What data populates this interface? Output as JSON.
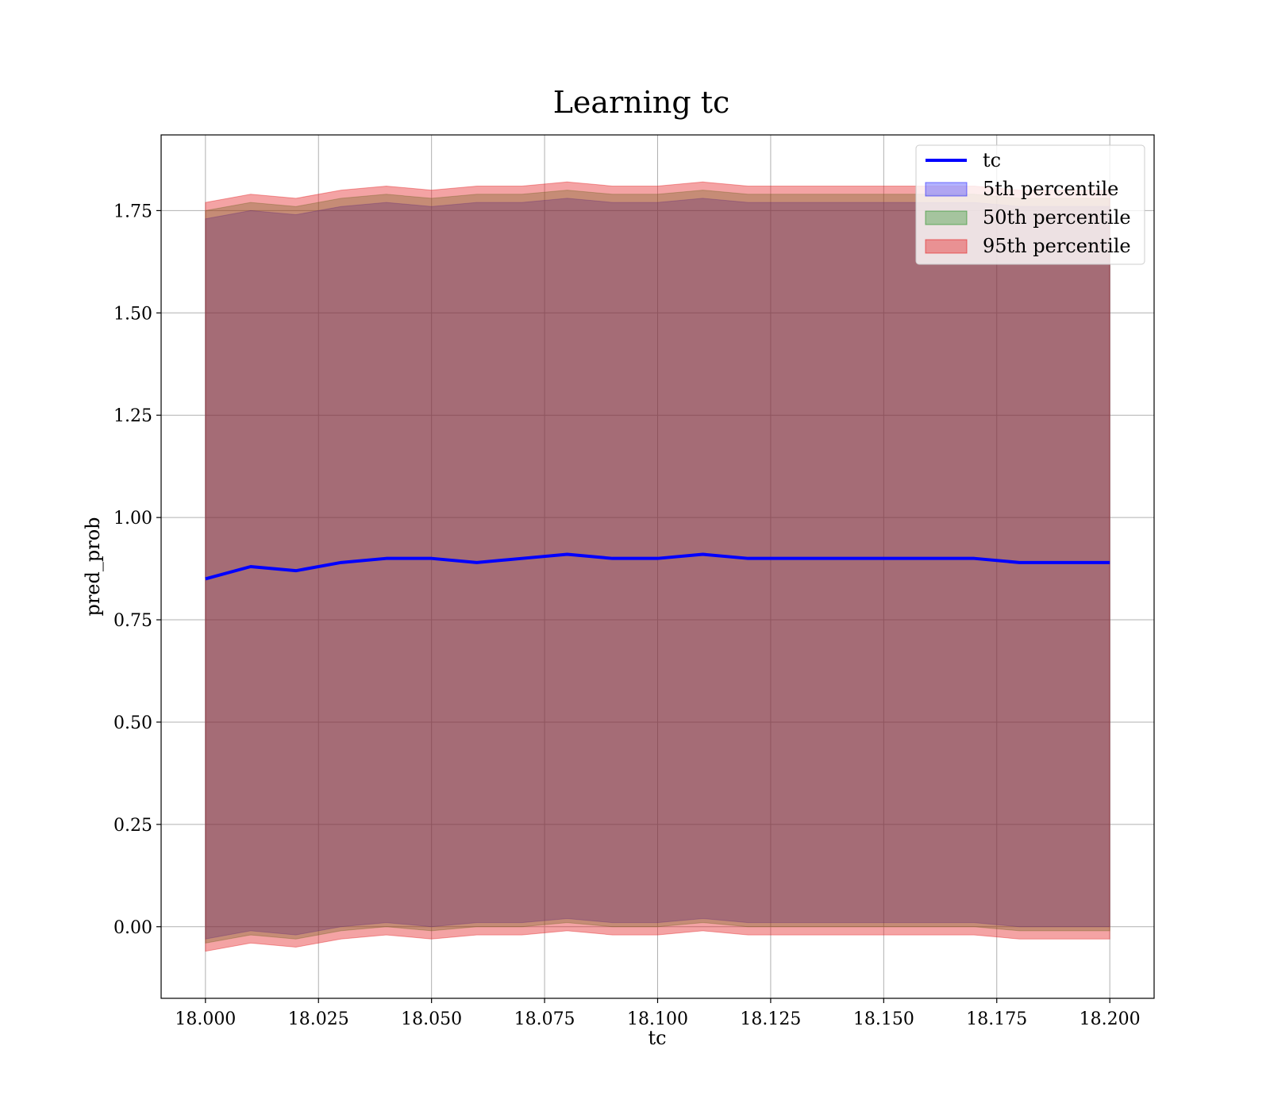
{
  "chart_data": {
    "type": "area",
    "title": "Learning tc",
    "xlabel": "tc",
    "ylabel": "pred_prob",
    "xlim": [
      17.9902,
      18.2098
    ],
    "ylim": [
      -0.175,
      1.935
    ],
    "xticks": [
      18.0,
      18.025,
      18.05,
      18.075,
      18.1,
      18.125,
      18.15,
      18.175,
      18.2
    ],
    "xtick_labels": [
      "18.000",
      "18.025",
      "18.050",
      "18.075",
      "18.100",
      "18.125",
      "18.150",
      "18.175",
      "18.200"
    ],
    "yticks": [
      0.0,
      0.25,
      0.5,
      0.75,
      1.0,
      1.25,
      1.5,
      1.75
    ],
    "ytick_labels": [
      "0.00",
      "0.25",
      "0.50",
      "0.75",
      "1.00",
      "1.25",
      "1.50",
      "1.75"
    ],
    "grid": true,
    "legend_position": "top-right",
    "x": [
      18.0,
      18.01,
      18.02,
      18.03,
      18.04,
      18.05,
      18.06,
      18.07,
      18.08,
      18.09,
      18.1,
      18.11,
      18.12,
      18.13,
      18.14,
      18.15,
      18.16,
      18.17,
      18.18,
      18.19,
      18.2
    ],
    "series": [
      {
        "name": "tc",
        "kind": "line",
        "color": "#0000ff",
        "values": [
          0.85,
          0.88,
          0.87,
          0.89,
          0.9,
          0.9,
          0.89,
          0.9,
          0.91,
          0.9,
          0.9,
          0.91,
          0.9,
          0.9,
          0.9,
          0.9,
          0.9,
          0.9,
          0.89,
          0.89,
          0.89
        ]
      },
      {
        "name": "5th percentile",
        "kind": "band",
        "color": "#0000ff",
        "opacity": 0.3,
        "lower": [
          -0.03,
          -0.01,
          -0.02,
          0.0,
          0.01,
          0.0,
          0.01,
          0.01,
          0.02,
          0.01,
          0.01,
          0.02,
          0.01,
          0.01,
          0.01,
          0.01,
          0.01,
          0.01,
          0.0,
          0.0,
          0.0
        ],
        "upper": [
          1.73,
          1.75,
          1.74,
          1.76,
          1.77,
          1.76,
          1.77,
          1.77,
          1.78,
          1.77,
          1.77,
          1.78,
          1.77,
          1.77,
          1.77,
          1.77,
          1.77,
          1.77,
          1.76,
          1.76,
          1.76
        ]
      },
      {
        "name": "50th percentile",
        "kind": "band",
        "color": "#008000",
        "opacity": 0.3,
        "lower": [
          -0.04,
          -0.02,
          -0.03,
          -0.01,
          0.0,
          -0.01,
          0.0,
          0.0,
          0.01,
          0.0,
          0.0,
          0.01,
          0.0,
          0.0,
          0.0,
          0.0,
          0.0,
          0.0,
          -0.01,
          -0.01,
          -0.01
        ],
        "upper": [
          1.75,
          1.77,
          1.76,
          1.78,
          1.79,
          1.78,
          1.79,
          1.79,
          1.8,
          1.79,
          1.79,
          1.8,
          1.79,
          1.79,
          1.79,
          1.79,
          1.79,
          1.79,
          1.78,
          1.78,
          1.78
        ]
      },
      {
        "name": "95th percentile",
        "kind": "band",
        "color": "#e31a1c",
        "opacity": 0.4,
        "lower": [
          -0.06,
          -0.04,
          -0.05,
          -0.03,
          -0.02,
          -0.03,
          -0.02,
          -0.02,
          -0.01,
          -0.02,
          -0.02,
          -0.01,
          -0.02,
          -0.02,
          -0.02,
          -0.02,
          -0.02,
          -0.02,
          -0.03,
          -0.03,
          -0.03
        ],
        "upper": [
          1.77,
          1.79,
          1.78,
          1.8,
          1.81,
          1.8,
          1.81,
          1.81,
          1.82,
          1.81,
          1.81,
          1.82,
          1.81,
          1.81,
          1.81,
          1.81,
          1.81,
          1.81,
          1.8,
          1.8,
          1.8
        ]
      }
    ]
  }
}
